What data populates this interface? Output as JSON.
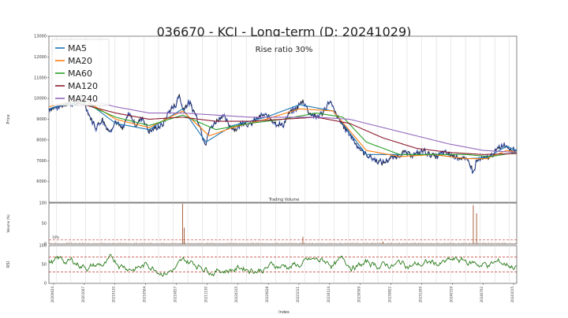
{
  "chart_data": {
    "type": "line",
    "title": "036670 - KCI - Long-term (D: 20241029)",
    "annotation": "Rise ratio 30%",
    "xlabel": "Index",
    "price_panel": {
      "ylabel": "Price",
      "ylim": [
        5000,
        13000
      ],
      "yticks": [
        "13000",
        "12000",
        "11000",
        "10000",
        "9000",
        "8000",
        "7000",
        "6000"
      ],
      "ytick_values": [
        13000,
        12000,
        11000,
        10000,
        9000,
        8000,
        7000,
        6000
      ],
      "legend_position": "top-left",
      "series": [
        {
          "name": "MA5",
          "color": "#1f77b4"
        },
        {
          "name": "MA20",
          "color": "#ff7f0e"
        },
        {
          "name": "MA60",
          "color": "#2ca02c"
        },
        {
          "name": "MA120",
          "color": "#8c1b2e"
        },
        {
          "name": "MA240",
          "color": "#9467bd"
        }
      ],
      "price_keypoints": [
        [
          0,
          9500
        ],
        [
          3,
          9600
        ],
        [
          6,
          9800
        ],
        [
          8,
          9700
        ],
        [
          10,
          10100
        ],
        [
          12,
          9200
        ],
        [
          14,
          8600
        ],
        [
          16,
          9000
        ],
        [
          18,
          8400
        ],
        [
          20,
          8900
        ],
        [
          22,
          8500
        ],
        [
          24,
          9300
        ],
        [
          26,
          8700
        ],
        [
          28,
          9100
        ],
        [
          30,
          8400
        ],
        [
          32,
          8600
        ],
        [
          34,
          8700
        ],
        [
          36,
          9400
        ],
        [
          38,
          9700
        ],
        [
          39,
          10200
        ],
        [
          40,
          9500
        ],
        [
          42,
          9800
        ],
        [
          44,
          9200
        ],
        [
          45,
          8800
        ],
        [
          46,
          8200
        ],
        [
          47,
          7800
        ],
        [
          48,
          8500
        ],
        [
          50,
          8900
        ],
        [
          52,
          9200
        ],
        [
          54,
          8700
        ],
        [
          56,
          8500
        ],
        [
          58,
          8900
        ],
        [
          60,
          8700
        ],
        [
          62,
          9000
        ],
        [
          64,
          9200
        ],
        [
          66,
          9100
        ],
        [
          68,
          8800
        ],
        [
          70,
          8700
        ],
        [
          72,
          9300
        ],
        [
          74,
          9500
        ],
        [
          76,
          9900
        ],
        [
          78,
          9300
        ],
        [
          80,
          9100
        ],
        [
          82,
          9300
        ],
        [
          84,
          9900
        ],
        [
          86,
          9200
        ],
        [
          88,
          8700
        ],
        [
          90,
          8300
        ],
        [
          92,
          7800
        ],
        [
          94,
          7400
        ],
        [
          96,
          7200
        ],
        [
          98,
          7000
        ],
        [
          100,
          6900
        ],
        [
          102,
          7100
        ],
        [
          104,
          7200
        ],
        [
          106,
          7400
        ],
        [
          108,
          7300
        ],
        [
          110,
          7300
        ],
        [
          112,
          7500
        ],
        [
          114,
          7300
        ],
        [
          116,
          7200
        ],
        [
          118,
          7400
        ],
        [
          120,
          7300
        ],
        [
          122,
          7200
        ],
        [
          124,
          7100
        ],
        [
          126,
          6900
        ],
        [
          127,
          6400
        ],
        [
          128,
          7000
        ],
        [
          130,
          7100
        ],
        [
          132,
          7200
        ],
        [
          134,
          7500
        ],
        [
          136,
          7800
        ],
        [
          138,
          7600
        ],
        [
          140,
          7500
        ]
      ],
      "ma_keypoints": {
        "MA5": [
          [
            0,
            9500
          ],
          [
            10,
            10000
          ],
          [
            20,
            8800
          ],
          [
            30,
            8500
          ],
          [
            40,
            9500
          ],
          [
            47,
            7900
          ],
          [
            55,
            8700
          ],
          [
            65,
            9100
          ],
          [
            75,
            9700
          ],
          [
            85,
            9400
          ],
          [
            95,
            7300
          ],
          [
            105,
            7300
          ],
          [
            115,
            7300
          ],
          [
            125,
            7100
          ],
          [
            131,
            7150
          ],
          [
            137,
            7700
          ],
          [
            140,
            7500
          ]
        ],
        "MA20": [
          [
            0,
            9600
          ],
          [
            10,
            10000
          ],
          [
            20,
            9000
          ],
          [
            30,
            8600
          ],
          [
            40,
            9400
          ],
          [
            48,
            8200
          ],
          [
            55,
            8600
          ],
          [
            65,
            9000
          ],
          [
            75,
            9500
          ],
          [
            85,
            9400
          ],
          [
            95,
            7500
          ],
          [
            105,
            7200
          ],
          [
            115,
            7300
          ],
          [
            125,
            7100
          ],
          [
            131,
            7100
          ],
          [
            137,
            7500
          ],
          [
            140,
            7400
          ]
        ],
        "MA60": [
          [
            4,
            9700
          ],
          [
            10,
            9800
          ],
          [
            20,
            9100
          ],
          [
            30,
            8700
          ],
          [
            40,
            9200
          ],
          [
            50,
            8500
          ],
          [
            60,
            8800
          ],
          [
            70,
            9000
          ],
          [
            80,
            9300
          ],
          [
            88,
            9100
          ],
          [
            95,
            7900
          ],
          [
            105,
            7300
          ],
          [
            115,
            7300
          ],
          [
            125,
            7300
          ],
          [
            132,
            7200
          ],
          [
            140,
            7400
          ]
        ],
        "MA120": [
          [
            8,
            9800
          ],
          [
            20,
            9300
          ],
          [
            30,
            9000
          ],
          [
            40,
            9100
          ],
          [
            50,
            8900
          ],
          [
            60,
            8900
          ],
          [
            70,
            9000
          ],
          [
            80,
            9100
          ],
          [
            90,
            8800
          ],
          [
            100,
            8100
          ],
          [
            110,
            7600
          ],
          [
            120,
            7400
          ],
          [
            130,
            7300
          ],
          [
            140,
            7350
          ]
        ],
        "MA240": [
          [
            10,
            10000
          ],
          [
            20,
            9600
          ],
          [
            30,
            9300
          ],
          [
            40,
            9300
          ],
          [
            50,
            9200
          ],
          [
            60,
            9100
          ],
          [
            70,
            9100
          ],
          [
            80,
            9100
          ],
          [
            90,
            9000
          ],
          [
            100,
            8600
          ],
          [
            110,
            8200
          ],
          [
            120,
            7800
          ],
          [
            130,
            7500
          ],
          [
            140,
            7400
          ]
        ]
      }
    },
    "volume_panel": {
      "title": "Trading Volume",
      "ylabel": "Volume (%)",
      "ylim": [
        0,
        100
      ],
      "yticks": [
        "100",
        "50",
        "0"
      ],
      "ytick_values": [
        100,
        50,
        0
      ],
      "threshold_label": "10%",
      "threshold": 10,
      "spikes": [
        [
          40,
          98
        ],
        [
          40.5,
          40
        ],
        [
          76,
          18
        ],
        [
          100,
          6
        ],
        [
          127,
          95
        ],
        [
          128,
          75
        ]
      ]
    },
    "rsi_panel": {
      "ylabel": "RSI",
      "ylim": [
        0,
        100
      ],
      "yticks": [
        "100",
        "50",
        "0"
      ],
      "ytick_values": [
        100,
        50,
        0
      ],
      "upper": 70,
      "lower": 30,
      "color": "#2a7a1a"
    },
    "x_labels": [
      "20200624",
      "20201007",
      "20210120",
      "20210504",
      "20210817",
      "20211130",
      "20220315",
      "20220628",
      "20221011",
      "20230124",
      "20230509",
      "20230822",
      "20231205",
      "20240319",
      "20240702",
      "20241015"
    ]
  }
}
